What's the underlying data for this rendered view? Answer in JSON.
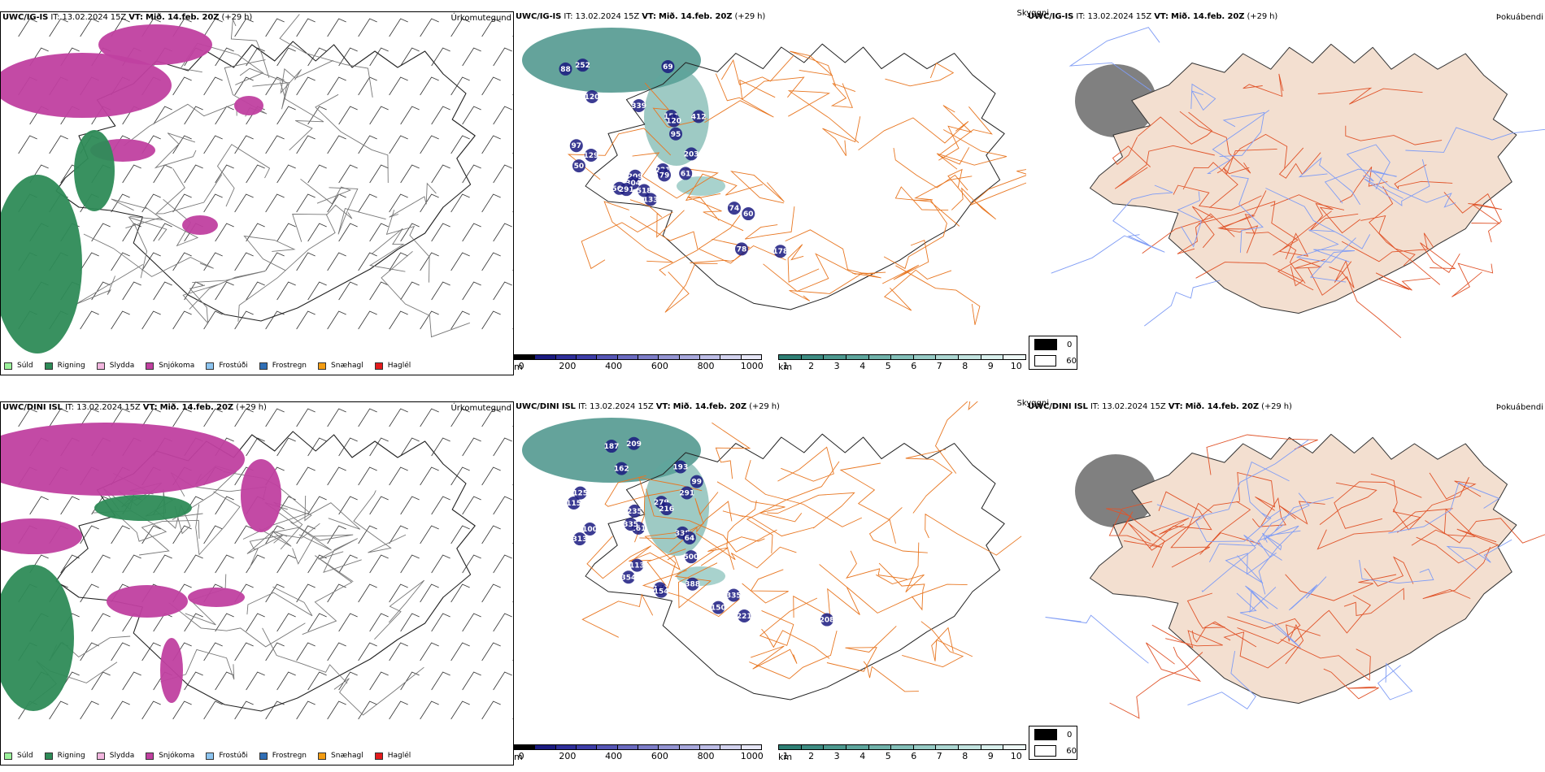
{
  "rows": [
    {
      "model": "UWC/IG-IS",
      "it_label": "IT:",
      "it_value": "13.02.2024 15Z",
      "vt_label": "VT:",
      "vt_value": "Mið. 14.feb. 20Z",
      "lead": "(+29 h)",
      "precip_panel_label": "Úrkomutegund",
      "vis_panel_label": "Skyggni",
      "fog_panel_label": "Þokuábendi",
      "dots_labels": [
        "567",
        "209",
        "339",
        "88",
        "412",
        "50",
        "304",
        "97",
        "151",
        "120",
        "129",
        "61",
        "291",
        "133",
        "69",
        "518",
        "221",
        "79",
        "203",
        "120",
        "252",
        "95",
        "74",
        "60",
        "178",
        "78"
      ]
    },
    {
      "model": "UWC/DINI ISL",
      "it_label": "IT:",
      "it_value": "13.02.2024 15Z",
      "vt_label": "VT:",
      "vt_value": "Mið. 14.feb. 20Z",
      "lead": "(+29 h)",
      "precip_panel_label": "Úrkomutegund",
      "vis_panel_label": "Skyggni",
      "fog_panel_label": "Þokuábendi",
      "dots_labels": [
        "500",
        "338",
        "193",
        "291",
        "162",
        "270",
        "99",
        "100",
        "261",
        "354",
        "209",
        "279",
        "216",
        "154",
        "113",
        "125",
        "313",
        "187",
        "388",
        "115",
        "335",
        "235",
        "64",
        "221",
        "335",
        "208",
        "150"
      ]
    }
  ],
  "precip_legend": [
    {
      "label": "Súld",
      "color": "#9cf29c"
    },
    {
      "label": "Rigning",
      "color": "#2e8b57"
    },
    {
      "label": "Slydda",
      "color": "#f2b6df"
    },
    {
      "label": "Snjókoma",
      "color": "#c040a0"
    },
    {
      "label": "Frostúði",
      "color": "#8cc4f0"
    },
    {
      "label": "Frostregn",
      "color": "#2f6eb5"
    },
    {
      "label": "Snæhagl",
      "color": "#f39c12"
    },
    {
      "label": "Haglél",
      "color": "#e31a1c"
    }
  ],
  "height_bar": {
    "unit": "m",
    "ticks": [
      "0",
      "200",
      "400",
      "600",
      "800",
      "1000"
    ],
    "colors": [
      "#000000",
      "#1a1a80",
      "#2e2e9a",
      "#3d3da8",
      "#5555b5",
      "#6a6ac0",
      "#7d7dc8",
      "#9494d2",
      "#a8a8dc",
      "#bdbde6",
      "#d2d2ee",
      "#e6e6f6"
    ]
  },
  "vis_bar": {
    "unit": "km",
    "ticks": [
      "1",
      "2",
      "3",
      "4",
      "5",
      "6",
      "7",
      "8",
      "9",
      "10"
    ],
    "colors": [
      "#2e7f74",
      "#3d8c82",
      "#4d998f",
      "#5ea69d",
      "#70b2aa",
      "#83bfb8",
      "#97cbc5",
      "#acd7d2",
      "#c2e3df",
      "#d8efec",
      "#eef8f6"
    ]
  },
  "fog_legend": [
    {
      "label": "0",
      "color": "#000000"
    },
    {
      "label": "60",
      "color": "#ffffff"
    }
  ]
}
